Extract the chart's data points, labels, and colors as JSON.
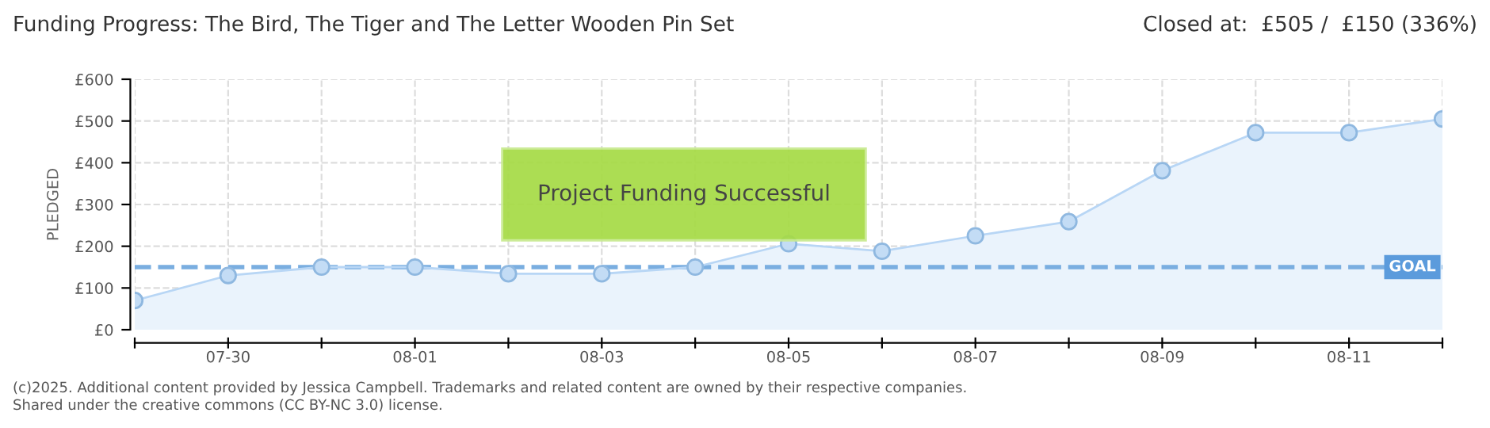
{
  "chart_data": {
    "type": "area",
    "title": "Funding Progress: The Bird, The Tiger and The Letter Wooden Pin Set",
    "subtitle": "Closed at:  £505 /  £150 (336%)",
    "ylabel": "PLEDGED",
    "x": [
      "2025-07-29",
      "2025-07-30",
      "2025-07-31",
      "2025-08-01",
      "2025-08-02",
      "2025-08-03",
      "2025-08-04",
      "2025-08-05",
      "2025-08-06",
      "2025-08-07",
      "2025-08-08",
      "2025-08-09",
      "2025-08-10",
      "2025-08-11",
      "2025-08-12"
    ],
    "series": [
      {
        "color": "#b8d6f5",
        "values": [
          70,
          130,
          150,
          150,
          134,
          134,
          150,
          206,
          188,
          225,
          259,
          381,
          472,
          472,
          505
        ]
      }
    ],
    "xlim": [
      "2025-07-29",
      "2025-08-12"
    ],
    "xticks": [
      {
        "value": "2025-07-29",
        "label": null
      },
      {
        "value": "2025-07-30",
        "label": "07-30"
      },
      {
        "value": "2025-07-31",
        "label": null
      },
      {
        "value": "2025-08-01",
        "label": "08-01"
      },
      {
        "value": "2025-08-02",
        "label": null
      },
      {
        "value": "2025-08-03",
        "label": "08-03"
      },
      {
        "value": "2025-08-04",
        "label": null
      },
      {
        "value": "2025-08-05",
        "label": "08-05"
      },
      {
        "value": "2025-08-06",
        "label": null
      },
      {
        "value": "2025-08-07",
        "label": "08-07"
      },
      {
        "value": "2025-08-08",
        "label": null
      },
      {
        "value": "2025-08-09",
        "label": "08-09"
      },
      {
        "value": "2025-08-10",
        "label": null
      },
      {
        "value": "2025-08-11",
        "label": "08-11"
      },
      {
        "value": "2025-08-12",
        "label": null
      }
    ],
    "ylim": [
      0,
      600
    ],
    "yticks": [
      {
        "value": 0,
        "label": "£0"
      },
      {
        "value": 100,
        "label": "£100"
      },
      {
        "value": 200,
        "label": "£200"
      },
      {
        "value": 300,
        "label": "£300"
      },
      {
        "value": 400,
        "label": "£400"
      },
      {
        "value": 500,
        "label": "£500"
      },
      {
        "value": 600,
        "label": "£600"
      }
    ],
    "ref_lines": [
      {
        "axis": "y",
        "value": 150,
        "label": "GOAL",
        "color": "#7aaee0",
        "line_style": "dashed"
      }
    ],
    "annotations": [
      "Project Funding Successful",
      "(c)2025. Additional content provided by Jessica Campbell. Trademarks and related content are owned by their respective companies.",
      "Shared under the creative commons (CC BY-NC 3.0) license."
    ],
    "grid": true,
    "marker": "circle",
    "line_style": "solid"
  }
}
